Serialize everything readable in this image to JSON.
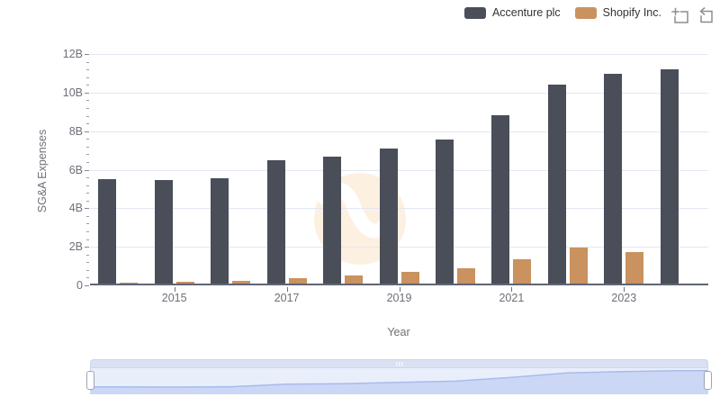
{
  "legend": {
    "items": [
      {
        "label": "Accenture plc",
        "color": "#4a4e59"
      },
      {
        "label": "Shopify Inc.",
        "color": "#c9925f"
      }
    ]
  },
  "toolbar": {
    "icons": [
      {
        "name": "zoom-select-icon"
      },
      {
        "name": "restore-icon"
      }
    ]
  },
  "chart_data": {
    "type": "bar",
    "title": "",
    "xlabel": "Year",
    "ylabel": "SG&A Expenses",
    "categories": [
      "2014",
      "2015",
      "2016",
      "2017",
      "2018",
      "2019",
      "2020",
      "2021",
      "2022",
      "2023",
      "2024"
    ],
    "series": [
      {
        "name": "Accenture plc",
        "color": "#4a4e59",
        "values": [
          5.4,
          5.35,
          5.47,
          6.4,
          6.57,
          7.01,
          7.46,
          8.74,
          10.33,
          10.86,
          11.13
        ]
      },
      {
        "name": "Shopify Inc.",
        "color": "#c9925f",
        "values": [
          0.05,
          0.08,
          0.15,
          0.28,
          0.44,
          0.61,
          0.8,
          1.24,
          1.88,
          1.65,
          null
        ]
      }
    ],
    "ylim": [
      0,
      12
    ],
    "ytick_step": 2,
    "ytick_labels": [
      "0",
      "2B",
      "4B",
      "6B",
      "8B",
      "10B",
      "12B"
    ],
    "xtick_labels": [
      "2015",
      "2017",
      "2019",
      "2021",
      "2023"
    ],
    "xtick_indices": [
      1,
      3,
      5,
      7,
      9
    ],
    "grid": true,
    "legend_position": "top-right",
    "units": "billions"
  },
  "colors": {
    "axis_text": "#6e7079",
    "gridline": "#e2e7f3",
    "axis_line": "#5f6577",
    "slider_area_fill": "#cbd7f5",
    "slider_area_line": "#a9bbec",
    "slider_background": "#e9eefb",
    "watermark_circle": "#fcf1e1"
  }
}
